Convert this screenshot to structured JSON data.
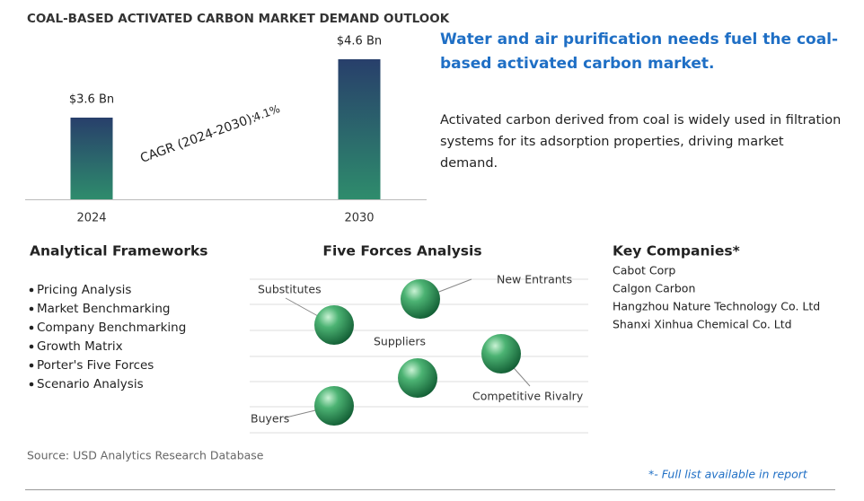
{
  "chart_data": {
    "type": "bar",
    "title": "COAL-BASED ACTIVATED CARBON MARKET DEMAND OUTLOOK",
    "categories": [
      "2024",
      "2030"
    ],
    "values": [
      3.6,
      4.6
    ],
    "value_labels": [
      "$3.6 Bn",
      "$4.6 Bn"
    ],
    "colors": [
      "#2e8c6c",
      "#283f6b"
    ],
    "ylim": [
      2.2,
      5
    ],
    "annotation": {
      "label": "CAGR (2024-2030):",
      "value": "4.1%"
    }
  },
  "headline": "Water and air purification needs fuel the coal-based activated carbon market.",
  "description": "Activated carbon derived from coal is widely used in filtration systems for its adsorption properties, driving market demand.",
  "frameworks": {
    "title": "Analytical Frameworks",
    "items": [
      "Pricing Analysis",
      "Market Benchmarking",
      "Company Benchmarking",
      "Growth Matrix",
      "Porter's Five Forces",
      "Scenario Analysis"
    ]
  },
  "five_forces": {
    "title": "Five Forces Analysis",
    "forces": [
      "New Entrants",
      "Substitutes",
      "Suppliers",
      "Competitive Rivalry",
      "Buyers"
    ]
  },
  "key_companies": {
    "title": "Key Companies*",
    "items": [
      "Cabot Corp",
      "Calgon Carbon",
      "Hangzhou Nature Technology Co. Ltd",
      "Shanxi Xinhua Chemical Co. Ltd"
    ]
  },
  "source": "Source: USD Analytics Research Database",
  "footnote": "*- Full list available in report"
}
